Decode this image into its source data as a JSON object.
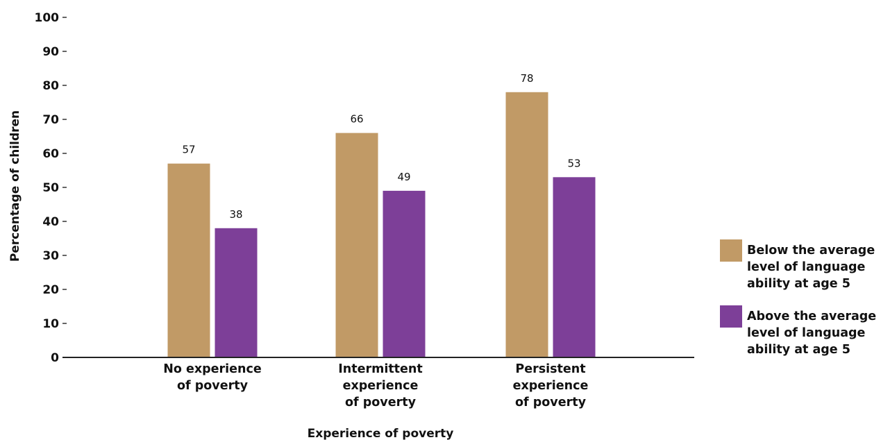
{
  "chart_data": {
    "type": "bar",
    "categories": [
      [
        "No experience",
        "of poverty"
      ],
      [
        "Intermittent",
        "experience",
        "of poverty"
      ],
      [
        "Persistent",
        "experience",
        "of poverty"
      ]
    ],
    "series": [
      {
        "name": [
          "Below the average",
          "level of language",
          "ability at age 5"
        ],
        "values": [
          57,
          66,
          78
        ],
        "color": "#c19a66"
      },
      {
        "name": [
          "Above the average",
          "level of language",
          "ability at age 5"
        ],
        "values": [
          38,
          49,
          53
        ],
        "color": "#7d3f98"
      }
    ],
    "yticks": [
      "0",
      "10",
      "20",
      "30",
      "40",
      "50",
      "60",
      "70",
      "80",
      "90",
      "100"
    ],
    "xlabel": "Experience of poverty",
    "ylabel": "Percentage of children",
    "ylim": [
      0,
      100
    ],
    "grid": false,
    "legend_position": "right"
  }
}
